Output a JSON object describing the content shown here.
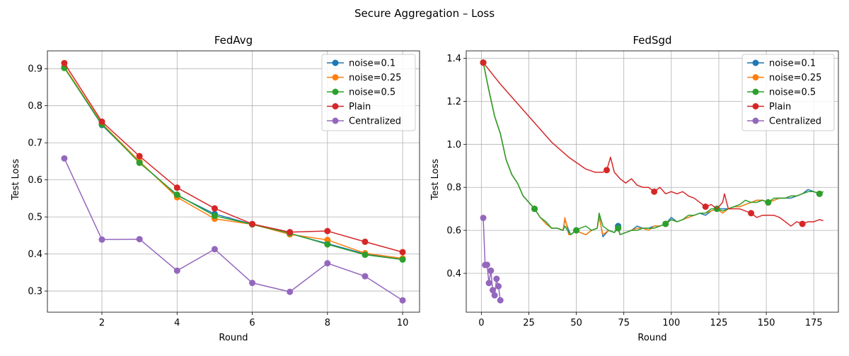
{
  "figure": {
    "suptitle": "Secure Aggregation – Loss",
    "colors": {
      "noise=0.1": "#1f77b4",
      "noise=0.25": "#ff7f0e",
      "noise=0.5": "#2ca02c",
      "Plain": "#d62728",
      "Centralized": "#9467bd"
    }
  },
  "chart_data": [
    {
      "type": "line",
      "title": "FedAvg",
      "xlabel": "Round",
      "ylabel": "Test Loss",
      "xlim": [
        0.55,
        10.45
      ],
      "ylim": [
        0.243,
        0.948
      ],
      "xticks": [
        2,
        4,
        6,
        8,
        10
      ],
      "yticks": [
        0.3,
        0.4,
        0.5,
        0.6,
        0.7,
        0.8,
        0.9
      ],
      "ytick_labels": [
        "0.3",
        "0.4",
        "0.5",
        "0.6",
        "0.7",
        "0.8",
        "0.9"
      ],
      "grid": true,
      "legend": "top-right",
      "series": [
        {
          "name": "noise=0.1",
          "marker_every": 1,
          "x": [
            1,
            2,
            3,
            4,
            5,
            6,
            7,
            8,
            9,
            10
          ],
          "y": [
            0.903,
            0.748,
            0.648,
            0.558,
            0.508,
            0.48,
            0.455,
            0.428,
            0.4,
            0.386
          ]
        },
        {
          "name": "noise=0.25",
          "marker_every": 1,
          "x": [
            1,
            2,
            3,
            4,
            5,
            6,
            7,
            8,
            9,
            10
          ],
          "y": [
            0.905,
            0.752,
            0.65,
            0.553,
            0.495,
            0.48,
            0.453,
            0.438,
            0.402,
            0.388
          ]
        },
        {
          "name": "noise=0.5",
          "marker_every": 1,
          "x": [
            1,
            2,
            3,
            4,
            5,
            6,
            7,
            8,
            9,
            10
          ],
          "y": [
            0.902,
            0.75,
            0.646,
            0.56,
            0.503,
            0.48,
            0.456,
            0.426,
            0.398,
            0.385
          ]
        },
        {
          "name": "Plain",
          "marker_every": 1,
          "x": [
            1,
            2,
            3,
            4,
            5,
            6,
            7,
            8,
            9,
            10
          ],
          "y": [
            0.915,
            0.757,
            0.664,
            0.579,
            0.523,
            0.481,
            0.459,
            0.462,
            0.433,
            0.405
          ]
        },
        {
          "name": "Centralized",
          "marker_every": 1,
          "x": [
            1,
            2,
            3,
            4,
            5,
            6,
            7,
            8,
            9,
            10
          ],
          "y": [
            0.658,
            0.439,
            0.44,
            0.355,
            0.413,
            0.322,
            0.298,
            0.375,
            0.34,
            0.275
          ]
        }
      ]
    },
    {
      "type": "line",
      "title": "FedSgd",
      "xlabel": "Round",
      "ylabel": "Test Loss",
      "xlim": [
        -7.95,
        187.95
      ],
      "ylim": [
        0.2195,
        1.4345
      ],
      "xticks": [
        0,
        25,
        50,
        75,
        100,
        125,
        150,
        175
      ],
      "yticks": [
        0.4,
        0.6,
        0.8,
        1.0,
        1.2,
        1.4
      ],
      "ytick_labels": [
        "0.4",
        "0.6",
        "0.8",
        "1.0",
        "1.2",
        "1.4"
      ],
      "grid": true,
      "legend": "top-right",
      "series": [
        {
          "name": "noise=0.1",
          "marker_every": 9,
          "x": [
            1,
            4,
            7,
            10,
            13,
            16,
            19,
            22,
            25,
            28,
            31,
            34,
            37,
            40,
            43,
            44,
            46,
            47,
            50,
            52,
            55,
            58,
            61,
            62,
            64,
            67,
            70,
            72,
            73,
            76,
            79,
            82,
            85,
            88,
            91,
            94,
            97,
            100,
            103,
            106,
            109,
            112,
            115,
            118,
            121,
            124,
            127,
            130,
            133,
            136,
            139,
            142,
            145,
            148,
            151,
            154,
            157,
            160,
            163,
            166,
            169,
            172,
            175,
            178,
            180
          ],
          "y": [
            1.38,
            1.25,
            1.13,
            1.05,
            0.93,
            0.86,
            0.82,
            0.76,
            0.73,
            0.7,
            0.66,
            0.64,
            0.61,
            0.61,
            0.6,
            0.65,
            0.6,
            0.58,
            0.6,
            0.59,
            0.58,
            0.6,
            0.61,
            0.67,
            0.57,
            0.6,
            0.59,
            0.62,
            0.58,
            0.59,
            0.6,
            0.62,
            0.61,
            0.61,
            0.62,
            0.62,
            0.63,
            0.66,
            0.64,
            0.65,
            0.66,
            0.67,
            0.68,
            0.67,
            0.69,
            0.7,
            0.7,
            0.7,
            0.71,
            0.71,
            0.72,
            0.73,
            0.74,
            0.74,
            0.73,
            0.74,
            0.75,
            0.75,
            0.75,
            0.76,
            0.77,
            0.79,
            0.78,
            0.77,
            0.78
          ]
        },
        {
          "name": "noise=0.25",
          "marker_every": 9,
          "x": [
            1,
            4,
            7,
            10,
            13,
            16,
            19,
            22,
            25,
            28,
            31,
            34,
            37,
            40,
            43,
            44,
            46,
            47,
            50,
            52,
            55,
            58,
            61,
            62,
            64,
            67,
            70,
            72,
            73,
            76,
            79,
            82,
            85,
            88,
            91,
            94,
            97,
            100,
            103,
            106,
            109,
            112,
            115,
            118,
            121,
            124,
            127,
            130,
            133,
            136,
            139,
            142,
            145,
            148,
            151,
            154,
            157,
            160,
            163,
            166,
            169,
            172,
            175,
            178,
            180
          ],
          "y": [
            1.38,
            1.25,
            1.13,
            1.05,
            0.93,
            0.86,
            0.82,
            0.76,
            0.73,
            0.7,
            0.66,
            0.63,
            0.61,
            0.61,
            0.6,
            0.66,
            0.58,
            0.58,
            0.6,
            0.59,
            0.58,
            0.6,
            0.61,
            0.66,
            0.58,
            0.6,
            0.59,
            0.61,
            0.58,
            0.59,
            0.6,
            0.61,
            0.61,
            0.6,
            0.62,
            0.62,
            0.63,
            0.65,
            0.64,
            0.65,
            0.66,
            0.67,
            0.68,
            0.68,
            0.69,
            0.7,
            0.68,
            0.7,
            0.71,
            0.71,
            0.72,
            0.73,
            0.74,
            0.74,
            0.73,
            0.74,
            0.75,
            0.75,
            0.76,
            0.76,
            0.77,
            0.78,
            0.78,
            0.77,
            0.78
          ]
        },
        {
          "name": "noise=0.5",
          "marker_every": 9,
          "x": [
            1,
            4,
            7,
            10,
            13,
            16,
            19,
            22,
            25,
            28,
            31,
            34,
            37,
            40,
            43,
            44,
            46,
            47,
            50,
            52,
            55,
            58,
            61,
            62,
            64,
            67,
            70,
            72,
            73,
            76,
            79,
            82,
            85,
            88,
            91,
            94,
            97,
            100,
            103,
            106,
            109,
            112,
            115,
            118,
            121,
            124,
            127,
            130,
            133,
            136,
            139,
            142,
            145,
            148,
            151,
            154,
            157,
            160,
            163,
            166,
            169,
            172,
            175,
            178,
            180
          ],
          "y": [
            1.38,
            1.25,
            1.13,
            1.05,
            0.93,
            0.86,
            0.82,
            0.76,
            0.73,
            0.7,
            0.66,
            0.64,
            0.61,
            0.61,
            0.6,
            0.62,
            0.59,
            0.58,
            0.6,
            0.61,
            0.62,
            0.6,
            0.61,
            0.68,
            0.62,
            0.6,
            0.59,
            0.61,
            0.58,
            0.59,
            0.6,
            0.6,
            0.61,
            0.61,
            0.61,
            0.62,
            0.63,
            0.65,
            0.64,
            0.65,
            0.67,
            0.67,
            0.68,
            0.68,
            0.7,
            0.7,
            0.69,
            0.7,
            0.71,
            0.72,
            0.74,
            0.73,
            0.73,
            0.74,
            0.73,
            0.75,
            0.75,
            0.75,
            0.76,
            0.76,
            0.77,
            0.78,
            0.78,
            0.77,
            0.78
          ]
        },
        {
          "name": "Plain",
          "marker_every": 9,
          "x": [
            1,
            10,
            19,
            28,
            37,
            46,
            55,
            60,
            64,
            66,
            68,
            70,
            73,
            76,
            79,
            82,
            85,
            88,
            91,
            94,
            97,
            100,
            103,
            106,
            109,
            112,
            115,
            118,
            121,
            124,
            127,
            128,
            130,
            133,
            136,
            139,
            142,
            145,
            148,
            151,
            154,
            157,
            160,
            163,
            166,
            169,
            172,
            175,
            178,
            180
          ],
          "y": [
            1.38,
            1.28,
            1.19,
            1.1,
            1.01,
            0.94,
            0.885,
            0.87,
            0.87,
            0.88,
            0.94,
            0.87,
            0.84,
            0.82,
            0.84,
            0.81,
            0.8,
            0.8,
            0.78,
            0.8,
            0.77,
            0.78,
            0.77,
            0.78,
            0.76,
            0.75,
            0.73,
            0.71,
            0.72,
            0.7,
            0.73,
            0.77,
            0.7,
            0.7,
            0.7,
            0.69,
            0.68,
            0.66,
            0.67,
            0.67,
            0.67,
            0.66,
            0.64,
            0.62,
            0.64,
            0.63,
            0.64,
            0.64,
            0.65,
            0.645
          ]
        },
        {
          "name": "Centralized",
          "marker_every": 1,
          "x": [
            1,
            2,
            3,
            4,
            5,
            6,
            7,
            8,
            9,
            10
          ],
          "y": [
            0.658,
            0.439,
            0.44,
            0.355,
            0.413,
            0.322,
            0.298,
            0.375,
            0.34,
            0.275
          ]
        }
      ]
    }
  ]
}
